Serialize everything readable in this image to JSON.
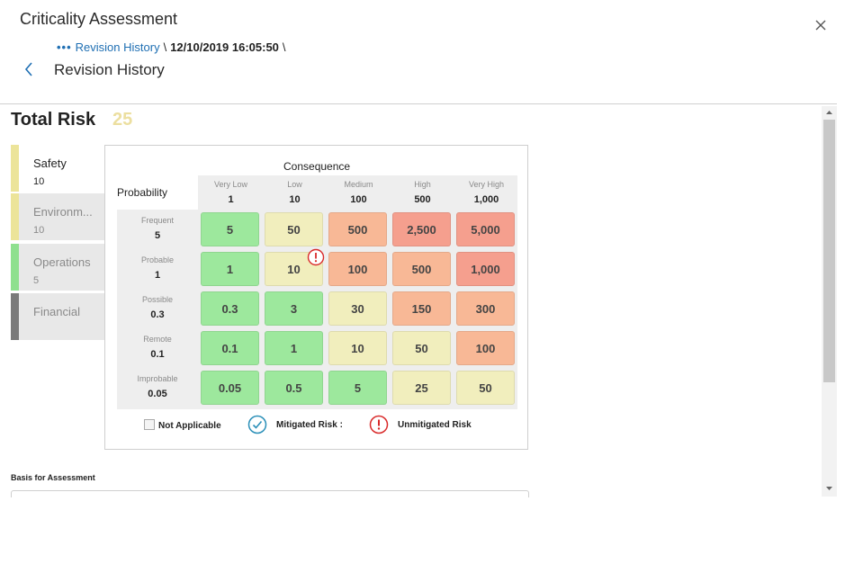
{
  "header": {
    "title": "Criticality Assessment",
    "breadcrumb_dots": "•••",
    "breadcrumb_link": "Revision History",
    "breadcrumb_sep1": "\\",
    "breadcrumb_stamp": "12/10/2019 16:05:50",
    "breadcrumb_sep2": "\\",
    "subtitle": "Revision History"
  },
  "total_risk": {
    "label": "Total Risk",
    "value": "25"
  },
  "tabs": [
    {
      "name": "Safety",
      "value": "10",
      "color": "#ece49a",
      "bg": "#ffffff",
      "text": "#222222"
    },
    {
      "name": "Environm...",
      "value": "10",
      "color": "#ece49a",
      "bg": "#e8e8e8",
      "text": "#8a8a8a"
    },
    {
      "name": "Operations",
      "value": "5",
      "color": "#8fe08f",
      "bg": "#e8e8e8",
      "text": "#8a8a8a"
    },
    {
      "name": "Financial",
      "value": "",
      "color": "#7a7a7a",
      "bg": "#e8e8e8",
      "text": "#8a8a8a"
    }
  ],
  "matrix": {
    "consequence_label": "Consequence",
    "probability_label": "Probability",
    "columns": [
      {
        "name": "Very Low",
        "value": "1"
      },
      {
        "name": "Low",
        "value": "10"
      },
      {
        "name": "Medium",
        "value": "100"
      },
      {
        "name": "High",
        "value": "500"
      },
      {
        "name": "Very High",
        "value": "1,000"
      }
    ],
    "rows": [
      {
        "name": "Frequent",
        "value": "5",
        "cells": [
          "5",
          "50",
          "500",
          "2,500",
          "5,000"
        ]
      },
      {
        "name": "Probable",
        "value": "1",
        "cells": [
          "1",
          "10",
          "100",
          "500",
          "1,000"
        ]
      },
      {
        "name": "Possible",
        "value": "0.3",
        "cells": [
          "0.3",
          "3",
          "30",
          "150",
          "300"
        ]
      },
      {
        "name": "Remote",
        "value": "0.1",
        "cells": [
          "0.1",
          "1",
          "10",
          "50",
          "100"
        ]
      },
      {
        "name": "Improbable",
        "value": "0.05",
        "cells": [
          "0.05",
          "0.5",
          "5",
          "25",
          "50"
        ]
      }
    ],
    "cell_colors": [
      [
        "#9de89d",
        "#f1eebd",
        "#f8b896",
        "#f59f8e",
        "#f59f8e"
      ],
      [
        "#9de89d",
        "#f1eebd",
        "#f8b896",
        "#f8b896",
        "#f59f8e"
      ],
      [
        "#9de89d",
        "#9de89d",
        "#f1eebd",
        "#f8b896",
        "#f8b896"
      ],
      [
        "#9de89d",
        "#9de89d",
        "#f1eebd",
        "#f1eebd",
        "#f8b896"
      ],
      [
        "#9de89d",
        "#9de89d",
        "#9de89d",
        "#f1eebd",
        "#f1eebd"
      ]
    ],
    "unmitigated_marker": {
      "row": 1,
      "col": 1,
      "icon": "exclamation-circle-icon"
    }
  },
  "legend": {
    "not_applicable": "Not Applicable",
    "mitigated": "Mitigated Risk :",
    "unmitigated": "Unmitigated Risk"
  },
  "basis": {
    "label": "Basis for Assessment"
  },
  "colors": {
    "accent": "#1f6fb3",
    "unmitigated": "#d92b2b",
    "mitigated": "#2a8fb8"
  }
}
